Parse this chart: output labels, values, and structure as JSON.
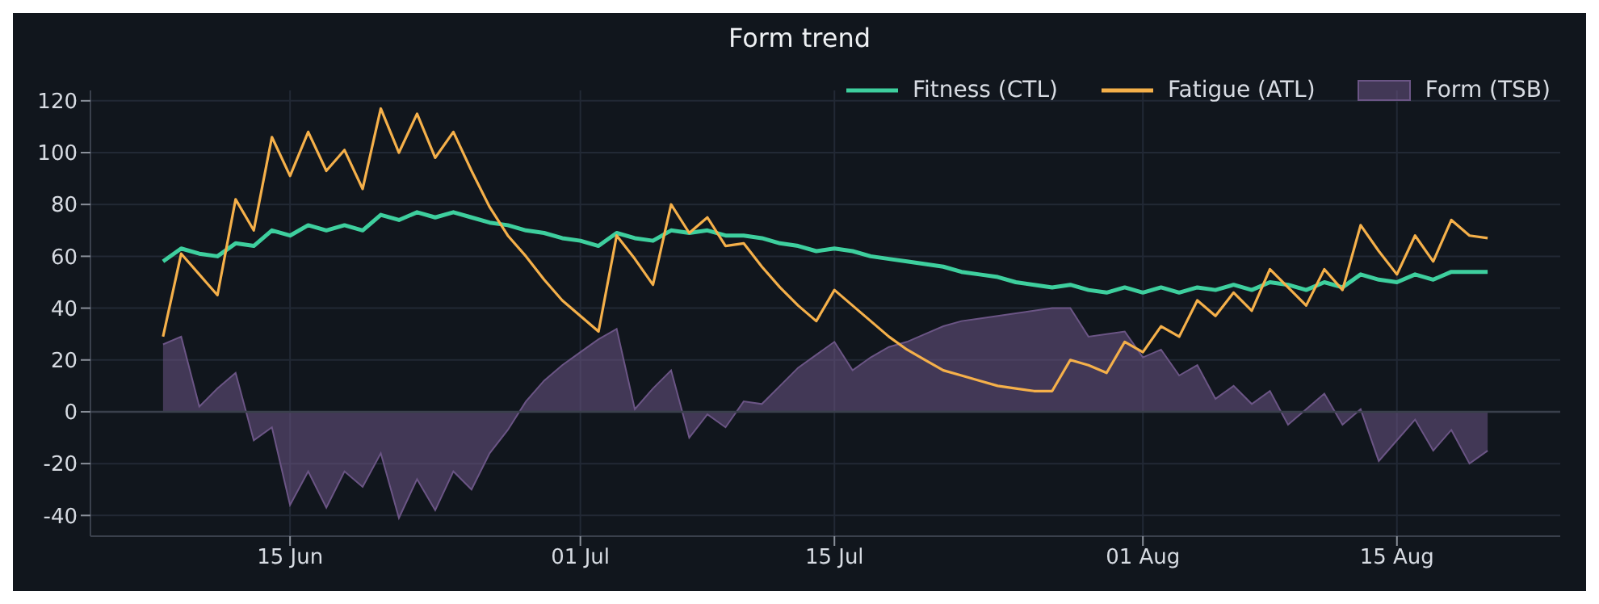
{
  "chart_data": {
    "type": "line",
    "title": "Form trend",
    "x": [
      "--06-08",
      "--06-09",
      "--06-10",
      "--06-11",
      "--06-12",
      "--06-13",
      "--06-14",
      "--06-15",
      "--06-16",
      "--06-17",
      "--06-18",
      "--06-19",
      "--06-20",
      "--06-21",
      "--06-22",
      "--06-23",
      "--06-24",
      "--06-25",
      "--06-26",
      "--06-27",
      "--06-28",
      "--06-29",
      "--06-30",
      "--07-01",
      "--07-02",
      "--07-03",
      "--07-04",
      "--07-05",
      "--07-06",
      "--07-07",
      "--07-08",
      "--07-09",
      "--07-10",
      "--07-11",
      "--07-12",
      "--07-13",
      "--07-14",
      "--07-15",
      "--07-16",
      "--07-17",
      "--07-18",
      "--07-19",
      "--07-20",
      "--07-21",
      "--07-22",
      "--07-23",
      "--07-24",
      "--07-25",
      "--07-26",
      "--07-27",
      "--07-28",
      "--07-29",
      "--07-30",
      "--07-31",
      "--08-01",
      "--08-02",
      "--08-03",
      "--08-04",
      "--08-05",
      "--08-06",
      "--08-07",
      "--08-08",
      "--08-09",
      "--08-10",
      "--08-11",
      "--08-12",
      "--08-13",
      "--08-14",
      "--08-15",
      "--08-16",
      "--08-17",
      "--08-18",
      "--08-19",
      "--08-20"
    ],
    "series": [
      {
        "name": "Fitness (CTL)",
        "color": "#3ecf9e",
        "values": [
          58,
          63,
          61,
          60,
          65,
          64,
          70,
          68,
          72,
          70,
          72,
          70,
          76,
          74,
          77,
          75,
          77,
          75,
          73,
          72,
          70,
          69,
          67,
          66,
          64,
          69,
          67,
          66,
          70,
          69,
          70,
          68,
          68,
          67,
          65,
          64,
          62,
          63,
          62,
          60,
          59,
          58,
          57,
          56,
          54,
          53,
          52,
          50,
          49,
          48,
          49,
          47,
          46,
          48,
          46,
          48,
          46,
          48,
          47,
          49,
          47,
          50,
          49,
          47,
          50,
          48,
          53,
          51,
          50,
          53,
          51,
          54,
          54,
          54
        ]
      },
      {
        "name": "Fatigue (ATL)",
        "color": "#f5b04a",
        "values": [
          29,
          61,
          53,
          45,
          82,
          70,
          106,
          91,
          108,
          93,
          101,
          86,
          117,
          100,
          115,
          98,
          108,
          93,
          79,
          68,
          60,
          51,
          43,
          37,
          31,
          68,
          59,
          49,
          80,
          69,
          75,
          64,
          65,
          56,
          48,
          41,
          35,
          47,
          41,
          35,
          29,
          24,
          20,
          16,
          14,
          12,
          10,
          9,
          8,
          8,
          20,
          18,
          15,
          27,
          23,
          33,
          29,
          43,
          37,
          46,
          39,
          55,
          48,
          41,
          55,
          47,
          72,
          62,
          53,
          68,
          58,
          74,
          68,
          67
        ]
      },
      {
        "name": "Form (TSB)",
        "type": "area",
        "color": "#6b5585",
        "values": [
          26,
          29,
          2,
          9,
          15,
          -11,
          -6,
          -36,
          -23,
          -37,
          -23,
          -29,
          -16,
          -41,
          -26,
          -38,
          -23,
          -30,
          -16,
          -7,
          4,
          12,
          18,
          23,
          28,
          32,
          1,
          9,
          16,
          -10,
          -1,
          -6,
          4,
          3,
          10,
          17,
          22,
          27,
          16,
          21,
          25,
          27,
          30,
          33,
          35,
          36,
          37,
          38,
          39,
          40,
          40,
          29,
          30,
          31,
          21,
          24,
          14,
          18,
          5,
          10,
          3,
          8,
          -5,
          1,
          7,
          -5,
          1,
          -19,
          -11,
          -3,
          -15,
          -7,
          -20,
          -15
        ]
      }
    ],
    "xlim": [
      "--06-04",
      "--08-24"
    ],
    "xticks": [
      {
        "value": "--06-15",
        "label": "15 Jun"
      },
      {
        "value": "--07-01",
        "label": "01 Jul"
      },
      {
        "value": "--07-15",
        "label": "15 Jul"
      },
      {
        "value": "--08-01",
        "label": "01 Aug"
      },
      {
        "value": "--08-15",
        "label": "15 Aug"
      }
    ],
    "ylim": [
      -48,
      124
    ],
    "yticks": [
      -40,
      -20,
      0,
      20,
      40,
      60,
      80,
      100,
      120
    ],
    "ref_lines": [
      {
        "axis": "y",
        "value": 0,
        "color": "#3a404c"
      }
    ],
    "grid": true,
    "legend": "top right"
  }
}
